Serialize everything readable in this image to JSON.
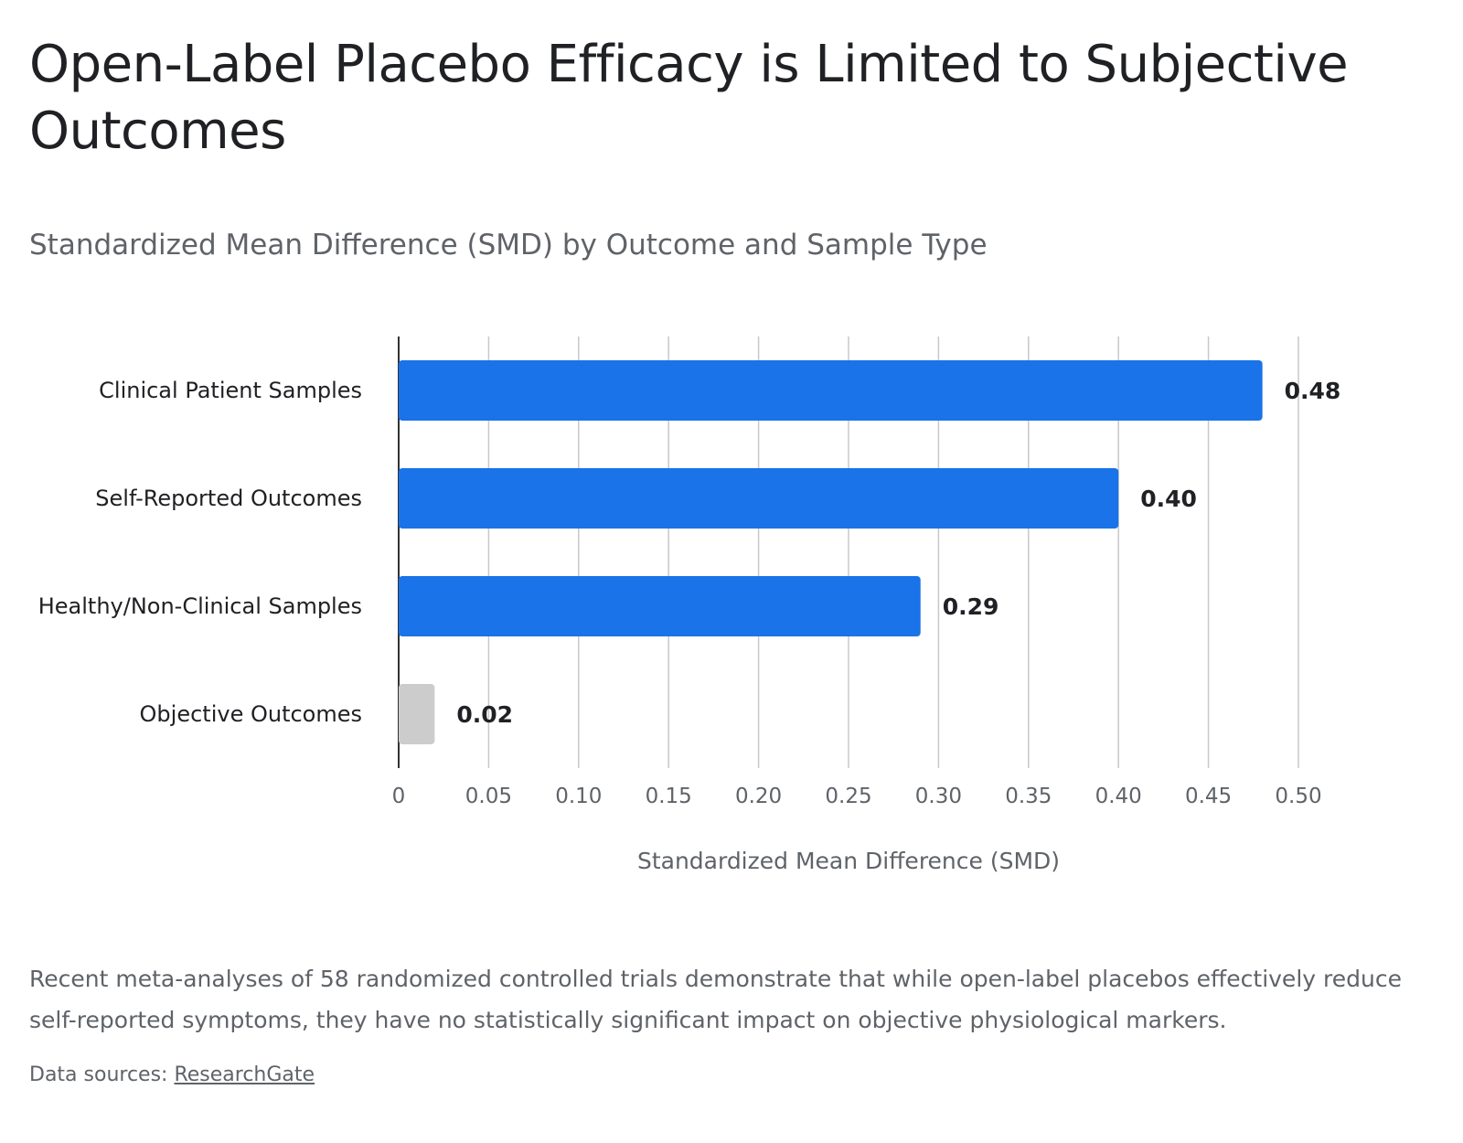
{
  "title": "Open-Label Placebo Efficacy is Limited to Subjective Outcomes",
  "subtitle": "Standardized Mean Difference (SMD) by Outcome and Sample Type",
  "description": "Recent meta-analyses of 58 randomized controlled trials demonstrate that while open-label placebos effectively reduce self-reported symptoms, they have no statistically significant impact on objective physiological markers.",
  "sources": {
    "prefix": "Data sources: ",
    "link_label": "ResearchGate"
  },
  "colors": {
    "primary_bar": "#1a73e8",
    "muted_bar": "#cccccc",
    "grid": "#c8c8c8",
    "axis": "#333333"
  },
  "chart_data": {
    "type": "bar",
    "orientation": "horizontal",
    "categories": [
      "Clinical Patient Samples",
      "Self-Reported Outcomes",
      "Healthy/Non-Clinical Samples",
      "Objective Outcomes"
    ],
    "values": [
      0.48,
      0.4,
      0.29,
      0.02
    ],
    "value_labels": [
      "0.48",
      "0.40",
      "0.29",
      "0.02"
    ],
    "bar_colors": [
      "#1a73e8",
      "#1a73e8",
      "#1a73e8",
      "#cccccc"
    ],
    "xlabel": "Standardized Mean Difference (SMD)",
    "ylabel": "",
    "xlim": [
      0,
      0.5
    ],
    "x_ticks": [
      0,
      0.05,
      0.1,
      0.15,
      0.2,
      0.25,
      0.3,
      0.35,
      0.4,
      0.45,
      0.5
    ],
    "x_tick_labels": [
      "0",
      "0.05",
      "0.10",
      "0.15",
      "0.20",
      "0.25",
      "0.30",
      "0.35",
      "0.40",
      "0.45",
      "0.50"
    ],
    "grid": true,
    "legend": "none"
  }
}
